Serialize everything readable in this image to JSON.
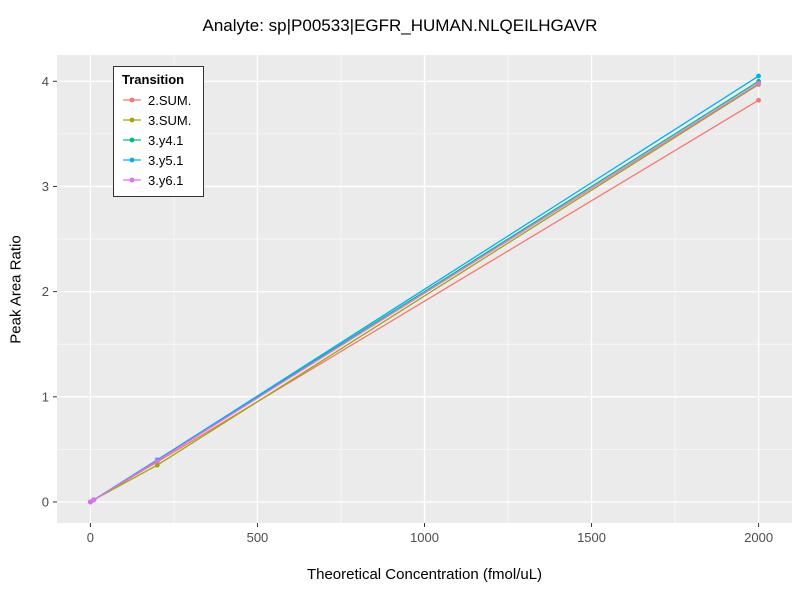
{
  "chart_data": {
    "type": "line",
    "title": "Analyte: sp|P00533|EGFR_HUMAN.NLQEILHGAVR",
    "xlabel": "Theoretical Concentration (fmol/uL)",
    "ylabel": "Peak Area Ratio",
    "legend_title": "Transition",
    "legend_position": "top-left-inside",
    "grid": true,
    "panel_bg": "#EBEBEB",
    "grid_major_color": "#FFFFFF",
    "grid_minor_color": "#FFFFFF",
    "axis_text_color": "#4D4D4D",
    "xlim": [
      -100,
      2100
    ],
    "ylim": [
      -0.2,
      4.25
    ],
    "x_ticks": [
      0,
      500,
      1000,
      1500,
      2000
    ],
    "y_ticks": [
      0,
      1,
      2,
      3,
      4
    ],
    "x_minor": [
      250,
      750,
      1250,
      1750
    ],
    "y_minor": [
      0.5,
      1.5,
      2.5,
      3.5
    ],
    "series": [
      {
        "name": "2.SUM.",
        "color": "#F8766D",
        "x": [
          0,
          10,
          200,
          2000
        ],
        "y": [
          0.0,
          0.02,
          0.38,
          3.82
        ]
      },
      {
        "name": "3.SUM.",
        "color": "#A3A500",
        "x": [
          0,
          10,
          200,
          2000
        ],
        "y": [
          0.0,
          0.02,
          0.35,
          3.97
        ]
      },
      {
        "name": "3.y4.1",
        "color": "#00BF7D",
        "x": [
          0,
          10,
          200,
          2000
        ],
        "y": [
          0.0,
          0.02,
          0.4,
          4.0
        ]
      },
      {
        "name": "3.y5.1",
        "color": "#00B0F6",
        "x": [
          0,
          10,
          200,
          2000
        ],
        "y": [
          0.0,
          0.02,
          0.4,
          4.05
        ]
      },
      {
        "name": "3.y6.1",
        "color": "#E76BF3",
        "x": [
          0,
          10,
          200,
          2000
        ],
        "y": [
          0.0,
          0.02,
          0.39,
          3.98
        ]
      }
    ]
  }
}
